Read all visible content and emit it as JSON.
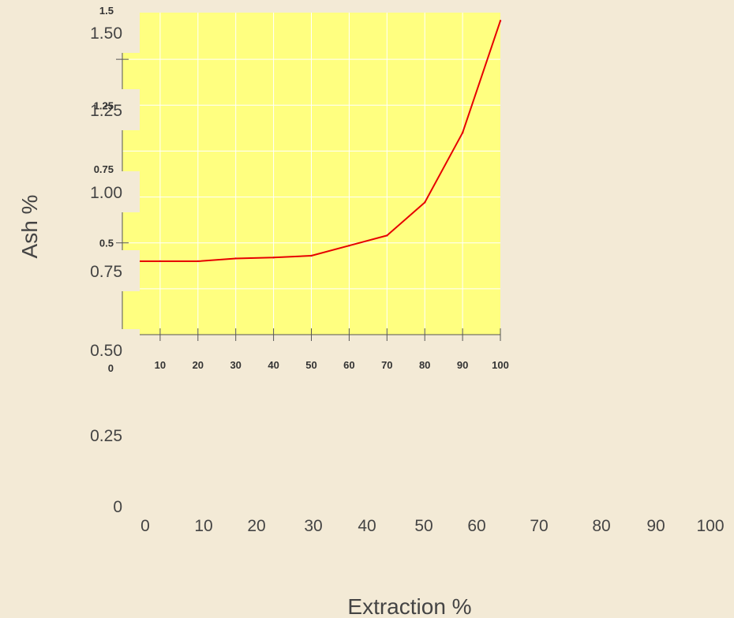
{
  "chart_data": {
    "type": "line",
    "xlabel": "Extraction %",
    "ylabel": "Ash %",
    "x": [
      0,
      10,
      20,
      30,
      40,
      50,
      60,
      70,
      80,
      90,
      100
    ],
    "series": [
      {
        "values": [
          0.4,
          0.4,
          0.4,
          0.415,
          0.42,
          0.43,
          0.485,
          0.54,
          0.72,
          1.1,
          1.71
        ]
      }
    ],
    "xlim": [
      0,
      100
    ],
    "ylim": [
      0,
      1.75
    ],
    "grid": true,
    "outer_axes": {
      "x_ticks": [
        "0",
        "10",
        "20",
        "30",
        "40",
        "50",
        "60",
        "70",
        "80",
        "90",
        "100"
      ],
      "y_ticks": [
        "0",
        "0.25",
        "0.50",
        "0.75",
        "1.00",
        "1.25",
        "1.50"
      ]
    },
    "inner_axes": {
      "x_ticks": [
        "10",
        "20",
        "30",
        "40",
        "50",
        "60",
        "70",
        "80",
        "90",
        "100"
      ],
      "y_ticks": [
        "1.25",
        "0.5"
      ],
      "y_ticks_partial": [
        "1.5",
        "0.75",
        "0"
      ]
    },
    "colors": {
      "background": "#f3ead6",
      "plot_area": "#ffff80",
      "line": "#e60000",
      "grid": "#ffffff"
    }
  }
}
